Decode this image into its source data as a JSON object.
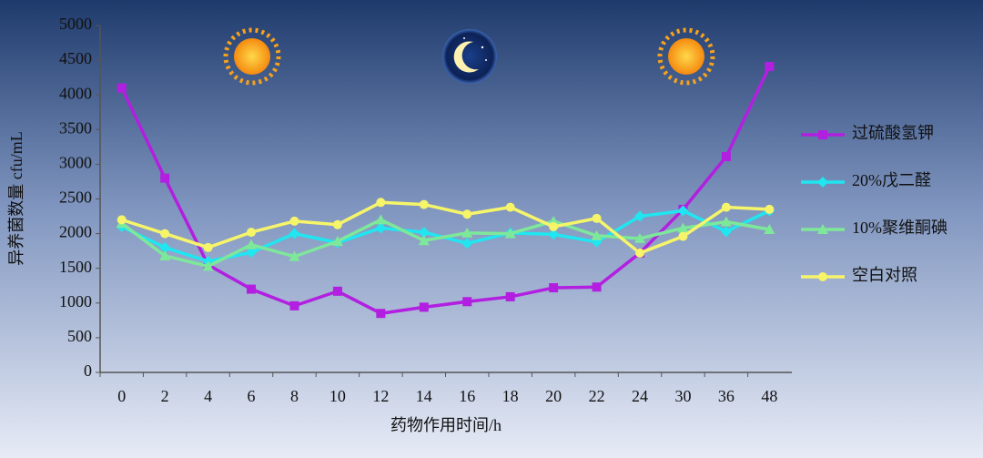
{
  "chart_data": {
    "type": "line",
    "x_label": "药物作用时间/h",
    "y_label": "异养菌数量 cfu/mL",
    "categories": [
      0,
      2,
      4,
      6,
      8,
      10,
      12,
      14,
      16,
      18,
      20,
      22,
      24,
      30,
      36,
      48
    ],
    "ylim": [
      0,
      5000
    ],
    "yticks": [
      0,
      500,
      1000,
      1500,
      2000,
      2500,
      3000,
      3500,
      4000,
      4500,
      5000
    ],
    "grid": false,
    "series": [
      {
        "name": "过硫酸氢钾",
        "color": "#b21fe0",
        "marker": "square",
        "values": [
          4100,
          2800,
          1550,
          1200,
          960,
          1170,
          850,
          940,
          1020,
          1090,
          1220,
          1230,
          1720,
          2350,
          3110,
          4410
        ]
      },
      {
        "name": "20%戊二醛",
        "color": "#1fe6f0",
        "marker": "diamond",
        "values": [
          2100,
          1800,
          1600,
          1730,
          2000,
          1870,
          2080,
          2020,
          1860,
          2010,
          1990,
          1880,
          2250,
          2330,
          2030,
          2330
        ]
      },
      {
        "name": "10%聚维酮碘",
        "color": "#7ee89a",
        "marker": "triangle",
        "values": [
          2150,
          1680,
          1530,
          1840,
          1670,
          1890,
          2200,
          1900,
          2010,
          2000,
          2180,
          1970,
          1930,
          2080,
          2170,
          2060
        ]
      },
      {
        "name": "空白对照",
        "color": "#f6f56a",
        "marker": "circle",
        "values": [
          2200,
          2000,
          1800,
          2020,
          2180,
          2130,
          2450,
          2420,
          2280,
          2380,
          2100,
          2220,
          1720,
          1960,
          2380,
          2350
        ]
      }
    ]
  }
}
